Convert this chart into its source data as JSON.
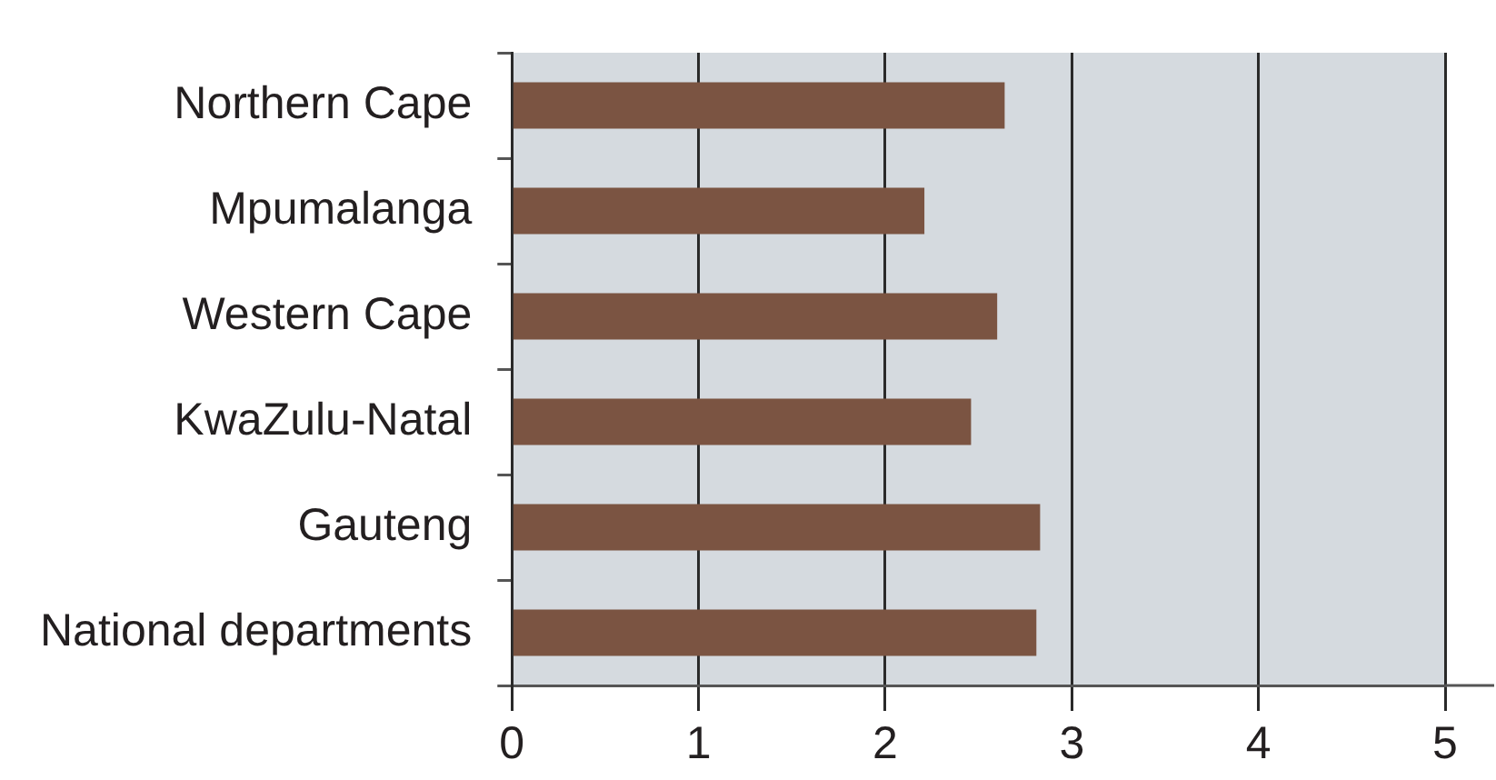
{
  "chart_data": {
    "type": "bar",
    "orientation": "horizontal",
    "categories": [
      "Northern Cape",
      "Mpumalanga",
      "Western Cape",
      "KwaZulu-Natal",
      "Gauteng",
      "National departments"
    ],
    "values": [
      2.64,
      2.21,
      2.6,
      2.46,
      2.83,
      2.81
    ],
    "color": "#7b5442",
    "xlim": [
      0,
      5
    ],
    "xticks": [
      0,
      1,
      2,
      3,
      4,
      5
    ],
    "grid": "x"
  }
}
